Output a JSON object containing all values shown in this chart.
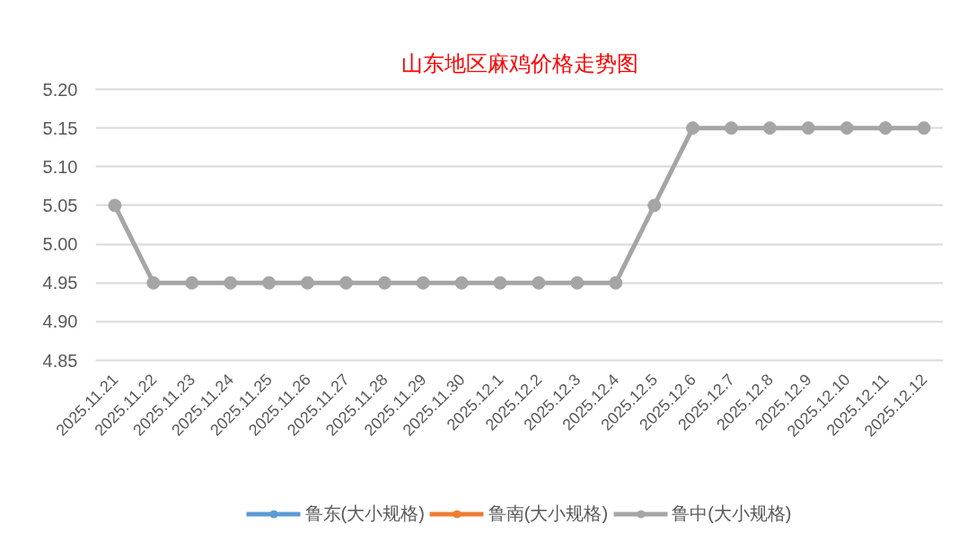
{
  "chart_data": {
    "type": "line",
    "title": "山东地区麻鸡价格走势图",
    "categories": [
      "2025.11.21",
      "2025.11.22",
      "2025.11.23",
      "2025.11.24",
      "2025.11.25",
      "2025.11.26",
      "2025.11.27",
      "2025.11.28",
      "2025.11.29",
      "2025.11.30",
      "2025.12.1",
      "2025.12.2",
      "2025.12.3",
      "2025.12.4",
      "2025.12.5",
      "2025.12.6",
      "2025.12.7",
      "2025.12.8",
      "2025.12.9",
      "2025.12.10",
      "2025.12.11",
      "2025.12.12"
    ],
    "series": [
      {
        "name": "鲁东(大小规格)",
        "color": "#5b9bd5",
        "values": [
          null,
          null,
          null,
          null,
          null,
          null,
          null,
          null,
          null,
          null,
          null,
          null,
          null,
          null,
          null,
          null,
          null,
          null,
          null,
          null,
          null,
          null
        ]
      },
      {
        "name": "鲁南(大小规格)",
        "color": "#ed7d31",
        "values": [
          null,
          null,
          null,
          null,
          null,
          null,
          null,
          null,
          null,
          null,
          null,
          null,
          null,
          null,
          null,
          null,
          null,
          null,
          null,
          null,
          null,
          null
        ]
      },
      {
        "name": "鲁中(大小规格)",
        "color": "#a5a5a5",
        "values": [
          5.05,
          4.95,
          4.95,
          4.95,
          4.95,
          4.95,
          4.95,
          4.95,
          4.95,
          4.95,
          4.95,
          4.95,
          4.95,
          4.95,
          5.05,
          5.15,
          5.15,
          5.15,
          5.15,
          5.15,
          5.15,
          5.15
        ]
      }
    ],
    "ylim": [
      4.85,
      5.2
    ],
    "yticks": [
      4.85,
      {
        "value": 4.9,
        "label": "4.90"
      },
      4.95,
      {
        "value": 5.0,
        "label": "5.00"
      },
      5.05,
      {
        "value": 5.1,
        "label": "5.10"
      },
      5.15,
      {
        "value": 5.2,
        "label": "5.20"
      }
    ],
    "grid": "y",
    "legend": "bottom",
    "marker": "circle",
    "line_style": "solid"
  }
}
